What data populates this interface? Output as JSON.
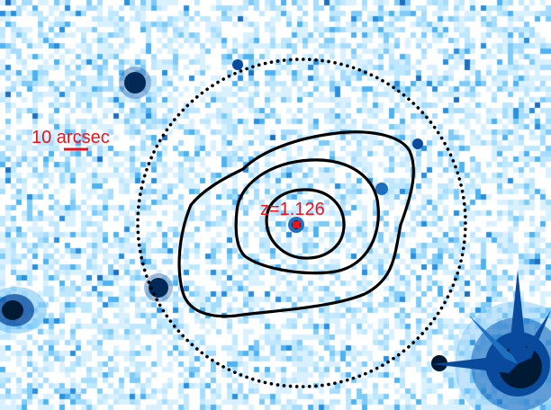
{
  "image": {
    "kind": "astronomical-sky-image",
    "colormap": {
      "background": "#ffffff",
      "faint": "#bfe8ff",
      "mid": "#4fb3f0",
      "bright": "#0a4a9c",
      "peak": "#001a33"
    }
  },
  "scale_bar": {
    "label": "10 arcsec",
    "color": "#e8141c"
  },
  "target": {
    "label": "z=1.126",
    "marker_color": "#e8141c"
  },
  "contours": {
    "count": 3,
    "color": "#000000"
  },
  "aperture": {
    "style": "dotted-circle",
    "color": "#000000"
  }
}
